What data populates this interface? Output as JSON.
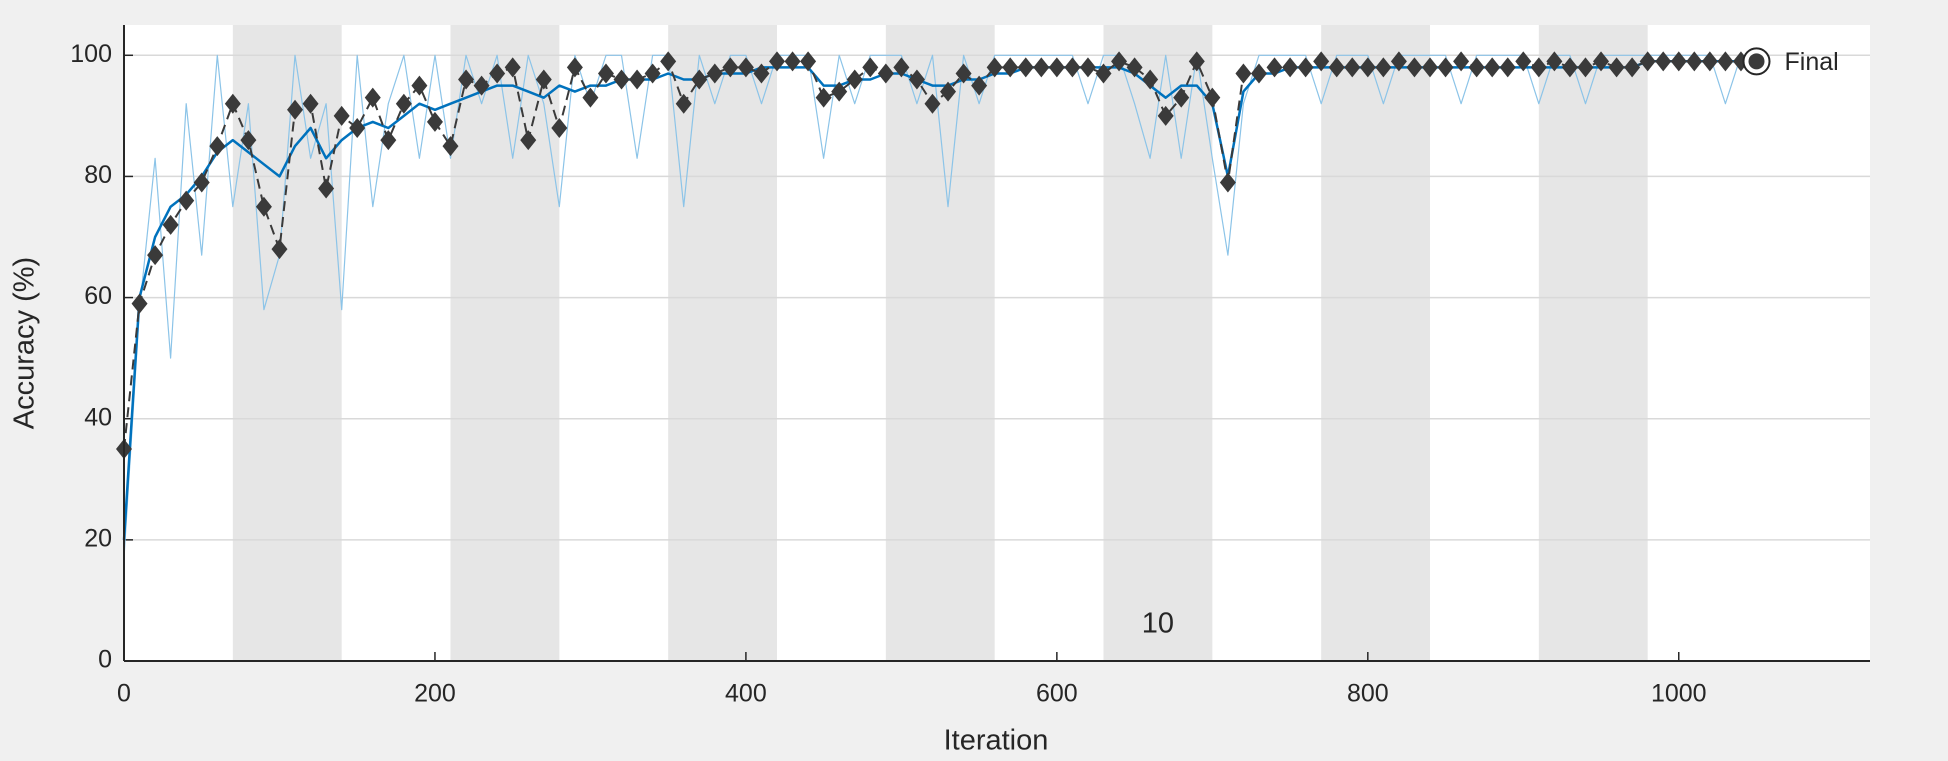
{
  "chart_data": {
    "type": "line",
    "xlabel": "Iteration",
    "ylabel": "Accuracy (%)",
    "xlim": [
      0,
      1123
    ],
    "ylim": [
      0,
      105
    ],
    "xticks": [
      0,
      200,
      400,
      600,
      800,
      1000
    ],
    "yticks": [
      0,
      20,
      40,
      60,
      80,
      100
    ],
    "grid": true,
    "epoch_bands": [
      [
        70,
        140
      ],
      [
        210,
        280
      ],
      [
        350,
        420
      ],
      [
        490,
        560
      ],
      [
        630,
        700
      ],
      [
        770,
        840
      ],
      [
        910,
        980
      ]
    ],
    "band_color": "#e6e6e6",
    "annotations": [
      {
        "text": "10",
        "x": 665,
        "y": 6
      }
    ],
    "final": {
      "label": "Final",
      "x": 1050,
      "y": 99
    },
    "x": [
      0,
      10,
      20,
      30,
      40,
      50,
      60,
      70,
      80,
      90,
      100,
      110,
      120,
      130,
      140,
      150,
      160,
      170,
      180,
      190,
      200,
      210,
      220,
      230,
      240,
      250,
      260,
      270,
      280,
      290,
      300,
      310,
      320,
      330,
      340,
      350,
      360,
      370,
      380,
      390,
      400,
      410,
      420,
      430,
      440,
      450,
      460,
      470,
      480,
      490,
      500,
      510,
      520,
      530,
      540,
      550,
      560,
      570,
      580,
      590,
      600,
      610,
      620,
      630,
      640,
      650,
      660,
      670,
      680,
      690,
      700,
      710,
      720,
      730,
      740,
      750,
      760,
      770,
      780,
      790,
      800,
      810,
      820,
      830,
      840,
      850,
      860,
      870,
      880,
      890,
      900,
      910,
      920,
      930,
      940,
      950,
      960,
      970,
      980,
      990,
      1000,
      1010,
      1020,
      1030,
      1040,
      1050
    ],
    "series": [
      {
        "color": "#8cc4e8",
        "width": 1.2,
        "line_style": "solid",
        "marker": "none",
        "values": [
          17,
          58,
          83,
          50,
          92,
          67,
          100,
          75,
          92,
          58,
          67,
          100,
          83,
          92,
          58,
          100,
          75,
          92,
          100,
          83,
          100,
          83,
          100,
          92,
          100,
          83,
          100,
          92,
          75,
          100,
          92,
          100,
          100,
          83,
          100,
          100,
          75,
          100,
          92,
          100,
          100,
          92,
          100,
          100,
          100,
          83,
          100,
          92,
          100,
          100,
          100,
          92,
          100,
          75,
          100,
          92,
          100,
          100,
          100,
          100,
          100,
          100,
          92,
          100,
          100,
          92,
          83,
          100,
          83,
          100,
          83,
          67,
          92,
          100,
          100,
          100,
          100,
          92,
          100,
          100,
          100,
          92,
          100,
          100,
          100,
          100,
          92,
          100,
          100,
          100,
          100,
          92,
          100,
          100,
          92,
          100,
          100,
          100,
          100,
          100,
          100,
          100,
          100,
          92,
          100,
          100
        ]
      },
      {
        "color": "#0072bd",
        "width": 2.5,
        "line_style": "solid",
        "marker": "none",
        "values": [
          20,
          60,
          70,
          75,
          77,
          80,
          84,
          86,
          84,
          82,
          80,
          85,
          88,
          83,
          86,
          88,
          89,
          88,
          90,
          92,
          91,
          92,
          93,
          94,
          95,
          95,
          94,
          93,
          95,
          94,
          95,
          95,
          96,
          96,
          96,
          97,
          96,
          96,
          97,
          97,
          97,
          98,
          98,
          98,
          98,
          95,
          95,
          96,
          96,
          97,
          97,
          96,
          95,
          95,
          96,
          96,
          97,
          97,
          98,
          98,
          98,
          98,
          98,
          98,
          98,
          97,
          95,
          93,
          95,
          95,
          92,
          80,
          94,
          97,
          97,
          98,
          98,
          98,
          98,
          98,
          98,
          98,
          98,
          98,
          98,
          98,
          98,
          98,
          98,
          98,
          98,
          98,
          98,
          98,
          98,
          98,
          98,
          98,
          99,
          99,
          99,
          99,
          99,
          99,
          99,
          99
        ]
      },
      {
        "color": "#3a3a3a",
        "width": 2,
        "line_style": "dashed",
        "marker": "diamond",
        "values": [
          35,
          59,
          67,
          72,
          76,
          79,
          85,
          92,
          86,
          75,
          68,
          91,
          92,
          78,
          90,
          88,
          93,
          86,
          92,
          95,
          89,
          85,
          96,
          95,
          97,
          98,
          86,
          96,
          88,
          98,
          93,
          97,
          96,
          96,
          97,
          99,
          92,
          96,
          97,
          98,
          98,
          97,
          99,
          99,
          99,
          93,
          94,
          96,
          98,
          97,
          98,
          96,
          92,
          94,
          97,
          95,
          98,
          98,
          98,
          98,
          98,
          98,
          98,
          97,
          99,
          98,
          96,
          90,
          93,
          99,
          93,
          79,
          97,
          97,
          98,
          98,
          98,
          99,
          98,
          98,
          98,
          98,
          99,
          98,
          98,
          98,
          99,
          98,
          98,
          98,
          99,
          98,
          99,
          98,
          98,
          99,
          98,
          98,
          99,
          99,
          99,
          99,
          99,
          99,
          99,
          99
        ]
      }
    ]
  }
}
